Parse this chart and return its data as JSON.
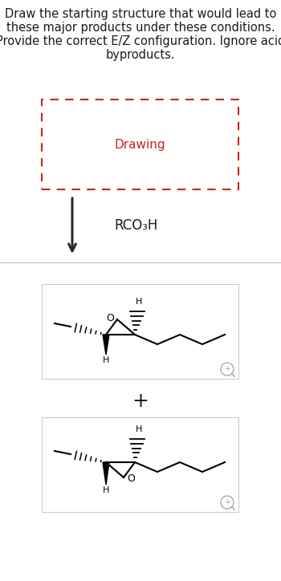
{
  "title_text": "Draw the starting structure that would lead to\nthese major products under these conditions.\nProvide the correct E/Z configuration. Ignore acid\nbyproducts.",
  "title_fontsize": 10.5,
  "title_color": "#1a1a1a",
  "background_color": "#ffffff",
  "drawing_box_color": "#cc2222",
  "drawing_text": "Drawing",
  "drawing_text_color": "#cc2222",
  "drawing_text_fontsize": 11,
  "reagent_text": "RCO₃H",
  "reagent_fontsize": 12,
  "plus_text": "+",
  "plus_fontsize": 18,
  "arrow_color": "#2a2a2a",
  "separator_color": "#bbbbbb",
  "product_box_edge": "#cccccc"
}
